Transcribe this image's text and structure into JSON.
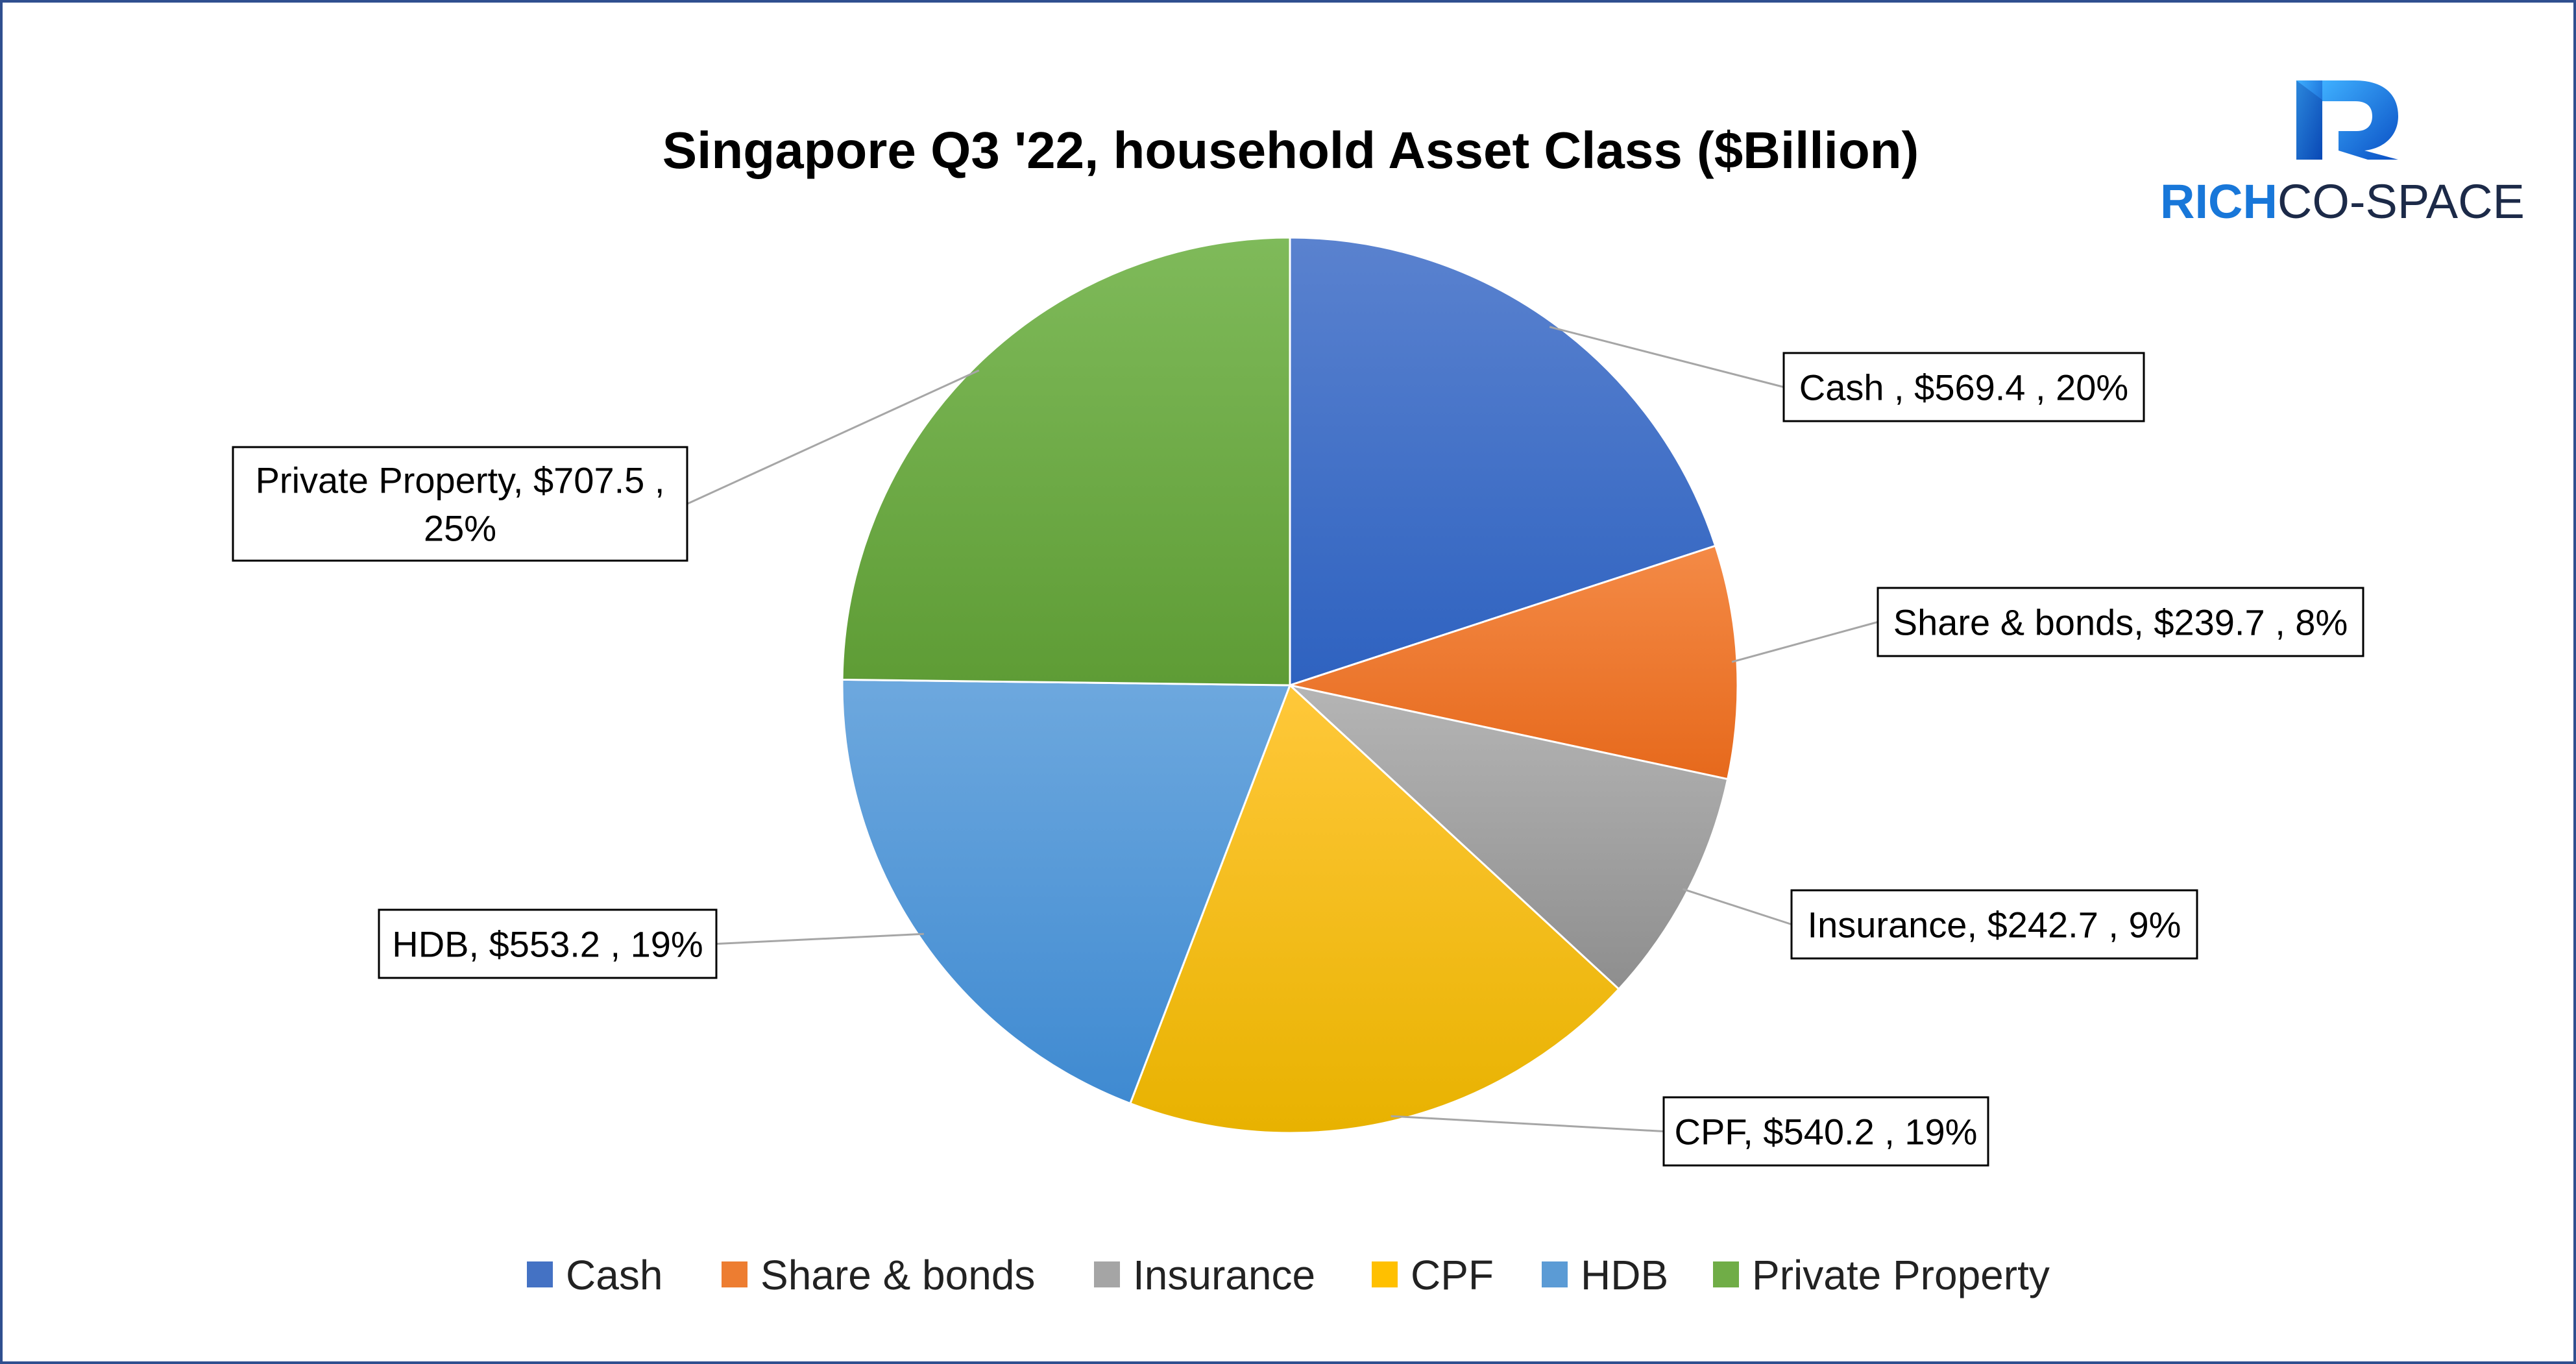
{
  "chart_data": {
    "type": "pie",
    "title": "Singapore Q3 '22, household Asset Class ($Billion)",
    "slices": [
      {
        "name": "Cash",
        "value": 569.4,
        "label": "Cash ,  $569.4 , 20%",
        "color": "#4472c4"
      },
      {
        "name": "Share & bonds",
        "value": 239.7,
        "label": "Share & bonds,  $239.7 , 8%",
        "color": "#ed7d31"
      },
      {
        "name": "Insurance",
        "value": 242.7,
        "label": "Insurance,  $242.7 , 9%",
        "color": "#a5a5a5"
      },
      {
        "name": "CPF",
        "value": 540.2,
        "label": "CPF,  $540.2 , 19%",
        "color": "#ffc000"
      },
      {
        "name": "HDB",
        "value": 553.2,
        "label": "HDB,  $553.2 , 19%",
        "color": "#5b9bd5"
      },
      {
        "name": "Private Property",
        "value": 707.5,
        "label_lines": [
          "Private Property,  $707.5 ,",
          "25%"
        ],
        "color": "#70ad47"
      }
    ],
    "legend": {
      "position": "bottom",
      "entries": [
        "Cash",
        "Share & bonds",
        "Insurance",
        "CPF",
        "HDB",
        "Private Property"
      ]
    }
  },
  "logo": {
    "part1": "RICH",
    "part2": "CO-SPACE",
    "icon": "r-monogram-icon"
  }
}
